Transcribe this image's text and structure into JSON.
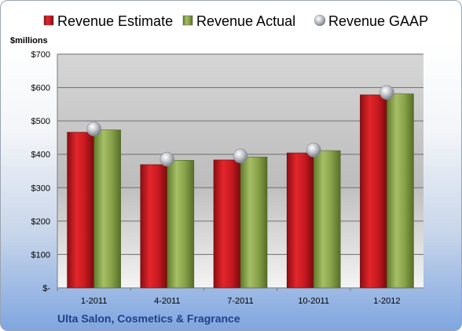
{
  "chart_data": {
    "type": "bar",
    "title": "",
    "unit_label": "$millions",
    "categories": [
      "1-2011",
      "4-2011",
      "7-2011",
      "10-2011",
      "1-2012"
    ],
    "series": [
      {
        "name": "Revenue Estimate",
        "kind": "bar",
        "color": "#c0161c",
        "values": [
          466,
          369,
          383,
          404,
          578
        ]
      },
      {
        "name": "Revenue Actual",
        "kind": "bar",
        "color": "#8aa34a",
        "values": [
          473,
          382,
          392,
          411,
          581
        ]
      },
      {
        "name": "Revenue GAAP",
        "kind": "marker",
        "color": "#b8bcc4",
        "values": [
          476,
          385,
          395,
          413,
          585
        ]
      }
    ],
    "y_ticks": [
      "$-",
      "$100",
      "$200",
      "$300",
      "$400",
      "$500",
      "$600",
      "$700"
    ],
    "ylim": [
      0,
      700
    ],
    "grid": true,
    "legend_position": "top"
  },
  "footer": {
    "company": "Ulta Salon, Cosmetics & Fragrance"
  }
}
